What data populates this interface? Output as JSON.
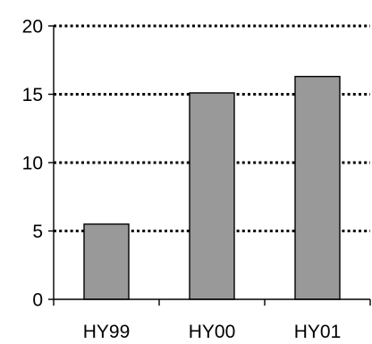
{
  "chart_data": {
    "type": "bar",
    "title": "",
    "xlabel": "",
    "ylabel": "",
    "categories": [
      "HY99",
      "HY00",
      "HY01"
    ],
    "values": [
      5.5,
      15.1,
      16.3
    ],
    "ylim": [
      0,
      20
    ],
    "yticks": [
      0,
      5,
      10,
      15,
      20
    ],
    "ytick_labels": [
      "0",
      "5",
      "10",
      "15",
      "20"
    ],
    "grid": "horizontal dotted",
    "legend": "none",
    "colors": {
      "bar_fill": "#999999",
      "bar_stroke": "#000000",
      "grid": "#000000",
      "axis": "#000000",
      "background": "#ffffff"
    }
  }
}
